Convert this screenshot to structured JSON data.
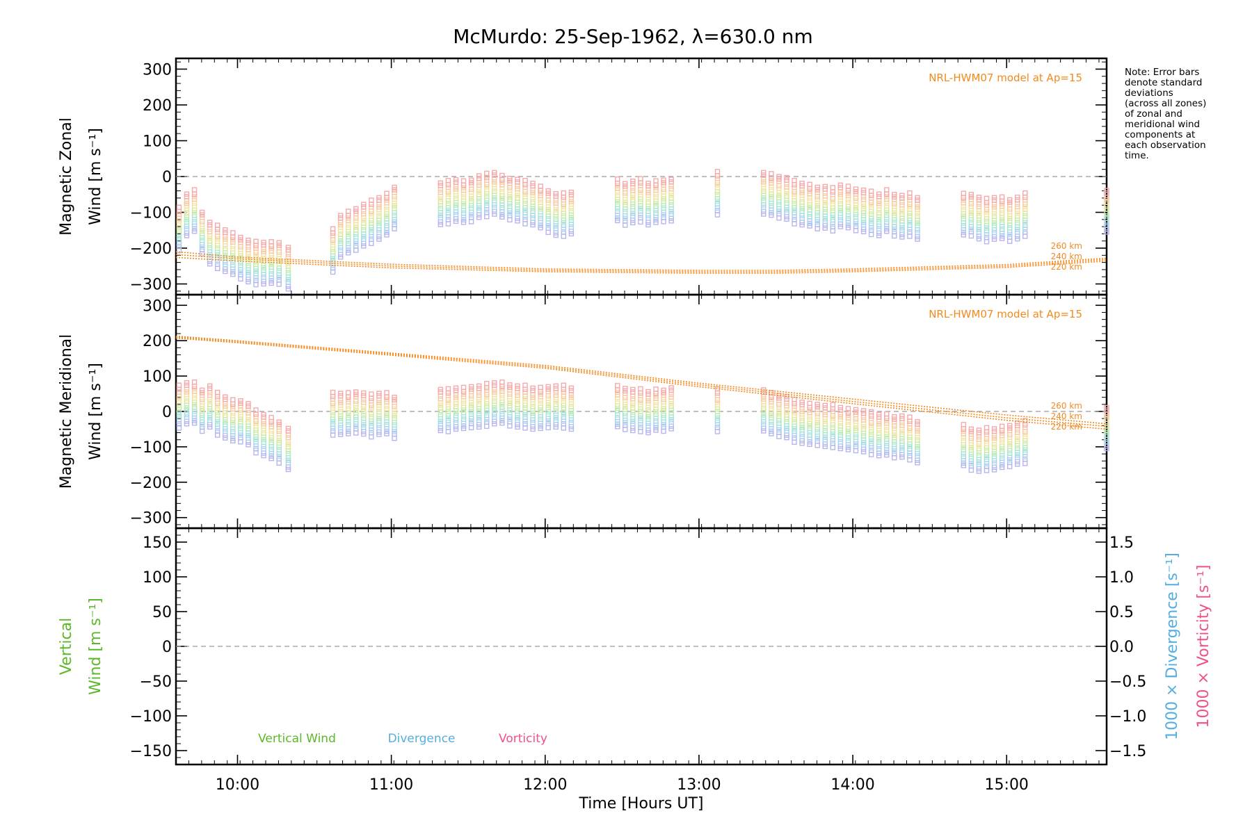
{
  "chart_data": [
    {
      "panel": "zonal",
      "type": "scatter",
      "title": "McMurdo: 25-Sep-1962, λ=630.0 nm",
      "ylabel_line1": "Magnetic Zonal",
      "ylabel_line2": "Wind [m s⁻¹]",
      "ylim": [
        -330,
        330
      ],
      "yticks": [
        "300",
        "200",
        "100",
        "0",
        "−100",
        "−200",
        "−300"
      ],
      "zero_line": true,
      "model_label": "NRL-HWM07 model at Ap=15",
      "model_curves": [
        {
          "name": "260 km",
          "x": [
            9.6,
            10.0,
            11.0,
            12.0,
            13.0,
            13.5,
            14.0,
            15.0,
            15.65
          ],
          "y": [
            -210,
            -225,
            -245,
            -258,
            -262,
            -262,
            -258,
            -246,
            -228
          ]
        },
        {
          "name": "240 km",
          "x": [
            9.6,
            10.0,
            11.0,
            12.0,
            13.0,
            13.5,
            14.0,
            15.0,
            15.65
          ],
          "y": [
            -218,
            -230,
            -250,
            -262,
            -266,
            -266,
            -262,
            -250,
            -232
          ]
        },
        {
          "name": "220 km",
          "x": [
            9.6,
            10.0,
            11.0,
            12.0,
            13.0,
            13.5,
            14.0,
            15.0,
            15.65
          ],
          "y": [
            -226,
            -236,
            -255,
            -266,
            -270,
            -270,
            -266,
            -254,
            -236
          ]
        }
      ],
      "observation_times": [
        9.62,
        9.67,
        9.72,
        9.77,
        9.82,
        9.87,
        9.92,
        9.97,
        10.02,
        10.07,
        10.12,
        10.17,
        10.22,
        10.27,
        10.33,
        10.62,
        10.67,
        10.72,
        10.77,
        10.82,
        10.87,
        10.92,
        10.97,
        11.02,
        11.32,
        11.37,
        11.42,
        11.47,
        11.52,
        11.57,
        11.62,
        11.67,
        11.72,
        11.77,
        11.82,
        11.87,
        11.92,
        11.97,
        12.02,
        12.07,
        12.12,
        12.17,
        12.47,
        12.52,
        12.57,
        12.62,
        12.67,
        12.72,
        12.77,
        12.82,
        13.12,
        13.42,
        13.47,
        13.52,
        13.57,
        13.62,
        13.67,
        13.72,
        13.77,
        13.82,
        13.87,
        13.92,
        13.97,
        14.02,
        14.07,
        14.12,
        14.17,
        14.22,
        14.27,
        14.32,
        14.37,
        14.42,
        14.72,
        14.77,
        14.82,
        14.87,
        14.92,
        14.97,
        15.02,
        15.07,
        15.12,
        15.65
      ],
      "column_center_values": [
        -150,
        -110,
        -100,
        -160,
        -190,
        -200,
        -210,
        -220,
        -230,
        -240,
        -245,
        -245,
        -245,
        -245,
        -260,
        -210,
        -170,
        -160,
        -150,
        -140,
        -130,
        -120,
        -110,
        -90,
        -80,
        -75,
        -70,
        -75,
        -70,
        -60,
        -55,
        -50,
        -60,
        -65,
        -70,
        -75,
        -80,
        -90,
        -100,
        -110,
        -110,
        -105,
        -70,
        -80,
        -75,
        -70,
        -80,
        -75,
        -70,
        -70,
        -50,
        -50,
        -55,
        -60,
        -65,
        -75,
        -80,
        -85,
        -90,
        -90,
        -95,
        -85,
        -90,
        -95,
        -100,
        -105,
        -110,
        -100,
        -110,
        -115,
        -110,
        -120,
        -110,
        -110,
        -120,
        -125,
        -120,
        -120,
        -125,
        -120,
        -110,
        -100
      ]
    },
    {
      "panel": "meridional",
      "type": "scatter",
      "ylabel_line1": "Magnetic Meridional",
      "ylabel_line2": "Wind [m s⁻¹]",
      "ylim": [
        -330,
        330
      ],
      "yticks": [
        "300",
        "200",
        "100",
        "0",
        "−100",
        "−200",
        "−300"
      ],
      "zero_line": true,
      "model_label": "NRL-HWM07 model at Ap=15",
      "model_curves": [
        {
          "name": "260 km",
          "x": [
            9.6,
            10.0,
            11.0,
            12.0,
            13.0,
            14.0,
            15.0,
            15.65
          ],
          "y": [
            213,
            200,
            165,
            130,
            80,
            35,
            -10,
            -35
          ]
        },
        {
          "name": "240 km",
          "x": [
            9.6,
            10.0,
            11.0,
            12.0,
            13.0,
            14.0,
            15.0,
            15.65
          ],
          "y": [
            210,
            197,
            162,
            126,
            75,
            28,
            -18,
            -42
          ]
        },
        {
          "name": "220 km",
          "x": [
            9.6,
            10.0,
            11.0,
            12.0,
            13.0,
            14.0,
            15.0,
            15.65
          ],
          "y": [
            207,
            194,
            159,
            122,
            70,
            22,
            -25,
            -50
          ]
        }
      ],
      "observation_times": [
        9.62,
        9.67,
        9.72,
        9.77,
        9.82,
        9.87,
        9.92,
        9.97,
        10.02,
        10.07,
        10.12,
        10.17,
        10.22,
        10.27,
        10.33,
        10.62,
        10.67,
        10.72,
        10.77,
        10.82,
        10.87,
        10.92,
        10.97,
        11.02,
        11.32,
        11.37,
        11.42,
        11.47,
        11.52,
        11.57,
        11.62,
        11.67,
        11.72,
        11.77,
        11.82,
        11.87,
        11.92,
        11.97,
        12.02,
        12.07,
        12.12,
        12.17,
        12.47,
        12.52,
        12.57,
        12.62,
        12.67,
        12.72,
        12.77,
        12.82,
        13.12,
        13.42,
        13.47,
        13.52,
        13.57,
        13.62,
        13.67,
        13.72,
        13.77,
        13.82,
        13.87,
        13.92,
        13.97,
        14.02,
        14.07,
        14.12,
        14.17,
        14.22,
        14.27,
        14.32,
        14.37,
        14.42,
        14.72,
        14.77,
        14.82,
        14.87,
        14.92,
        14.97,
        15.02,
        15.07,
        15.12,
        15.65
      ],
      "column_center_values": [
        10,
        20,
        20,
        0,
        10,
        -10,
        -20,
        -30,
        -30,
        -40,
        -60,
        -70,
        -80,
        -90,
        -110,
        -10,
        -10,
        -10,
        -5,
        -10,
        -15,
        -10,
        -10,
        -20,
        0,
        0,
        5,
        5,
        10,
        10,
        15,
        20,
        20,
        15,
        10,
        10,
        5,
        5,
        10,
        10,
        10,
        5,
        10,
        5,
        0,
        0,
        -5,
        0,
        0,
        5,
        0,
        0,
        -10,
        -15,
        -20,
        -30,
        -35,
        -40,
        -40,
        -45,
        -45,
        -50,
        -55,
        -55,
        -60,
        -65,
        -70,
        -70,
        -75,
        -75,
        -80,
        -90,
        -100,
        -110,
        -115,
        -110,
        -110,
        -105,
        -100,
        -95,
        -90,
        -50
      ]
    },
    {
      "panel": "vertical",
      "type": "line",
      "ylabel_line1": "Vertical",
      "ylabel_line2": "Wind [m s⁻¹]",
      "ylim": [
        -170,
        170
      ],
      "yticks": [
        "150",
        "100",
        "50",
        "0",
        "−50",
        "−100",
        "−150"
      ],
      "y2ticks": [
        "1.5",
        "1.0",
        "0.5",
        "0.0",
        "−0.5",
        "−1.0",
        "−1.5"
      ],
      "y2label_divergence": "1000 × Divergence [s⁻¹]",
      "y2label_vorticity": "1000 × Vorticity [s⁻¹]",
      "zero_line": true,
      "legend": [
        "Vertical Wind",
        "Divergence",
        "Vorticity"
      ],
      "xlabel": "Time [Hours UT]",
      "xlim": [
        9.6,
        15.65
      ],
      "xticks": [
        "10:00",
        "11:00",
        "12:00",
        "13:00",
        "14:00",
        "15:00"
      ]
    }
  ],
  "note_lines": [
    "Note: Error bars",
    "denote standard",
    "deviations",
    "(across all zones)",
    "of zonal and",
    "meridional wind",
    "components at",
    "each observation",
    "time."
  ],
  "colors": {
    "model": "#f28a1e",
    "zero_line": "#9a9a9a",
    "vertical_label": "#5cb82a",
    "divergence_label": "#55aee0",
    "vorticity_label": "#f0508c",
    "scatter_palette": [
      "#f5a9a9",
      "#f7c9a5",
      "#f2e3a2",
      "#cdeaa3",
      "#a9e7d0",
      "#a9d4f0",
      "#b6b6ee"
    ]
  }
}
